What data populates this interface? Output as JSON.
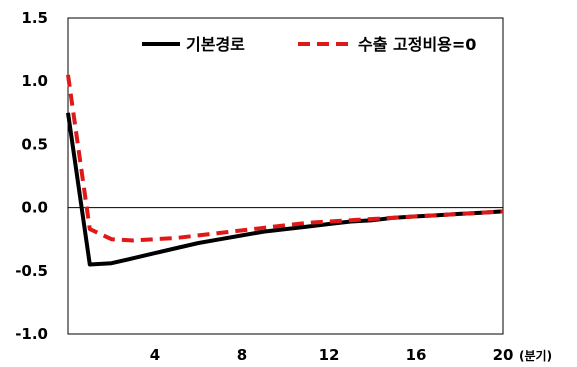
{
  "chart_data": {
    "type": "line",
    "x_unit_label": "(분기)",
    "xlim": [
      0,
      20
    ],
    "ylim": [
      -1.0,
      1.5
    ],
    "x_ticks": [
      4,
      8,
      12,
      16,
      20
    ],
    "x_tick_labels": [
      "4",
      "8",
      "12",
      "16",
      "20"
    ],
    "y_ticks": [
      1.5,
      1.0,
      0.5,
      0.0,
      -0.5,
      -1.0
    ],
    "y_tick_labels": [
      "1.5",
      "1.0",
      "0.5",
      "0.0",
      "-0.5",
      "-1.0"
    ],
    "grid": false,
    "zero_line": true,
    "legend_position": "top-right",
    "series": [
      {
        "name": "기본경로",
        "color": "#000000",
        "style": "solid",
        "x": [
          0,
          1,
          2,
          3,
          4,
          5,
          6,
          7,
          8,
          9,
          10,
          11,
          12,
          13,
          14,
          15,
          16,
          17,
          18,
          19,
          20
        ],
        "y": [
          0.75,
          -0.45,
          -0.44,
          -0.4,
          -0.36,
          -0.32,
          -0.28,
          -0.25,
          -0.22,
          -0.19,
          -0.17,
          -0.15,
          -0.13,
          -0.11,
          -0.1,
          -0.08,
          -0.07,
          -0.06,
          -0.05,
          -0.04,
          -0.03
        ]
      },
      {
        "name": "수출 고정비용=0",
        "color": "#e01818",
        "style": "dashed",
        "x": [
          0,
          1,
          2,
          3,
          4,
          5,
          6,
          7,
          8,
          9,
          10,
          11,
          12,
          13,
          14,
          15,
          16,
          17,
          18,
          19,
          20
        ],
        "y": [
          1.05,
          -0.17,
          -0.25,
          -0.26,
          -0.25,
          -0.24,
          -0.22,
          -0.2,
          -0.18,
          -0.16,
          -0.14,
          -0.12,
          -0.11,
          -0.1,
          -0.09,
          -0.08,
          -0.07,
          -0.06,
          -0.05,
          -0.04,
          -0.03
        ]
      }
    ]
  }
}
